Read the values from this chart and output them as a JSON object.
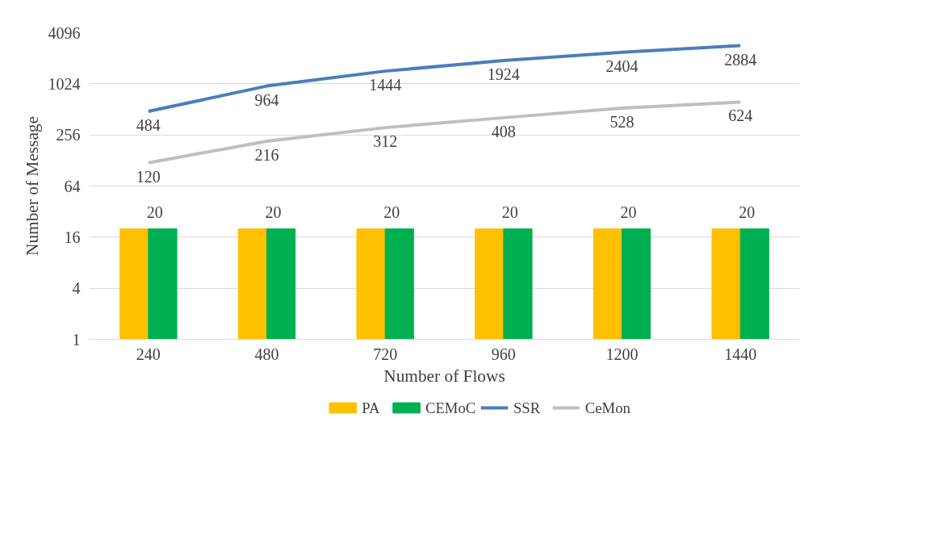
{
  "chart_data": {
    "type": "bar",
    "xlabel": "Number of Flows",
    "ylabel": "Number of Message",
    "categories": [
      "240",
      "480",
      "720",
      "960",
      "1200",
      "1440"
    ],
    "series": [
      {
        "name": "PA",
        "color": "#ffc000",
        "values": [
          20,
          20,
          20,
          20,
          20,
          20
        ]
      },
      {
        "name": "CEMoC",
        "color": "#00b050",
        "values": [
          20,
          20,
          20,
          20,
          20,
          20
        ],
        "value_labels": [
          "20",
          "20",
          "20",
          "20",
          "20",
          "20"
        ]
      },
      {
        "name": "SSR",
        "type": "line",
        "color": "#4a7ebb",
        "values": [
          484,
          964,
          1444,
          1924,
          2404,
          2884
        ],
        "data_labels": true
      },
      {
        "name": "CeMon",
        "type": "line",
        "color": "#bfbfbf",
        "values": [
          120,
          216,
          312,
          408,
          528,
          624
        ],
        "data_labels": true
      }
    ],
    "log": "y",
    "ylim": [
      1,
      4096
    ],
    "yticks": [
      1,
      4,
      16,
      64,
      256,
      1024,
      4096
    ],
    "grid": "y",
    "legend": "bottom",
    "marker": "none",
    "line_style": "solid"
  }
}
